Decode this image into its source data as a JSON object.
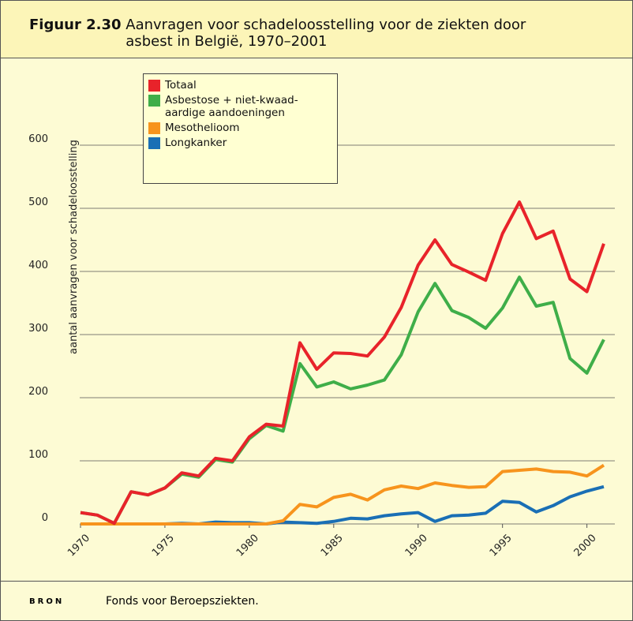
{
  "figure_label": "Figuur 2.30",
  "footer": {
    "label": "BRON",
    "text": "Fonds voor Beroepsziekten."
  },
  "chart_data": {
    "type": "line",
    "title": "Aanvragen voor schadeloosstelling voor de ziekten door asbest in België, 1970–2001",
    "ylabel": "aantal aanvragen voor schadeloosstelling",
    "x": [
      1970,
      1971,
      1972,
      1973,
      1974,
      1975,
      1976,
      1977,
      1978,
      1979,
      1980,
      1981,
      1982,
      1983,
      1984,
      1985,
      1986,
      1987,
      1988,
      1989,
      1990,
      1991,
      1992,
      1993,
      1994,
      1995,
      1996,
      1997,
      1998,
      1999,
      2000,
      2001
    ],
    "xlim": [
      1970,
      2001
    ],
    "xticks": [
      1970,
      1975,
      1980,
      1985,
      1990,
      1995,
      2000
    ],
    "ylim": [
      0,
      600
    ],
    "yticks": [
      0,
      100,
      200,
      300,
      400,
      500,
      600
    ],
    "grid": true,
    "legend": "top-left",
    "series": [
      {
        "name": "Totaal",
        "color": "#e8232a",
        "values": [
          18,
          14,
          1,
          51,
          46,
          57,
          81,
          76,
          104,
          100,
          138,
          158,
          155,
          287,
          245,
          271,
          270,
          266,
          296,
          343,
          410,
          450,
          411,
          399,
          386,
          460,
          510,
          452,
          464,
          388,
          368,
          444
        ]
      },
      {
        "name": "Asbestose + niet-kwaad-aardige aandoeningen",
        "color": "#3fae49",
        "values": [
          18,
          14,
          1,
          51,
          46,
          57,
          79,
          74,
          102,
          98,
          135,
          156,
          147,
          254,
          217,
          225,
          214,
          220,
          228,
          268,
          336,
          381,
          338,
          327,
          310,
          342,
          391,
          345,
          351,
          262,
          239,
          292
        ]
      },
      {
        "name": "Mesothelioom",
        "color": "#f7941d",
        "values": [
          0,
          0,
          0,
          0,
          0,
          0,
          0,
          0,
          0,
          0,
          0,
          0,
          5,
          31,
          27,
          42,
          47,
          38,
          54,
          60,
          56,
          65,
          61,
          58,
          59,
          83,
          85,
          87,
          83,
          82,
          76,
          93
        ]
      },
      {
        "name": "Longkanker",
        "color": "#1a6fb5",
        "values": [
          0,
          0,
          0,
          0,
          0,
          0,
          1,
          0,
          3,
          2,
          2,
          0,
          3,
          2,
          1,
          4,
          9,
          8,
          13,
          16,
          18,
          4,
          13,
          14,
          17,
          36,
          34,
          19,
          29,
          43,
          52,
          59
        ]
      }
    ]
  }
}
